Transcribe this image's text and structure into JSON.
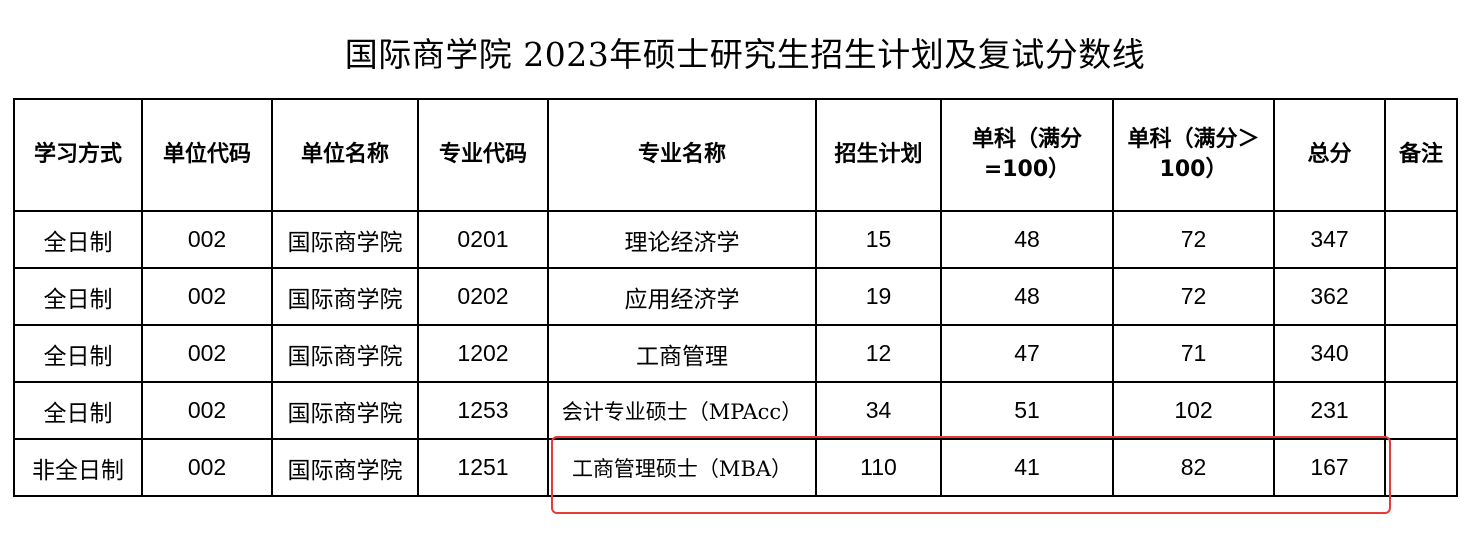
{
  "title": "国际商学院 2023年硕士研究生招生计划及复试分数线",
  "table": {
    "headers": [
      "学习方式",
      "单位代码",
      "单位名称",
      "专业代码",
      "专业名称",
      "招生计划",
      "单科（满分=100）",
      "单科（满分＞100）",
      "总分",
      "备注"
    ],
    "rows": [
      [
        "全日制",
        "002",
        "国际商学院",
        "0201",
        "理论经济学",
        "15",
        "48",
        "72",
        "347",
        ""
      ],
      [
        "全日制",
        "002",
        "国际商学院",
        "0202",
        "应用经济学",
        "19",
        "48",
        "72",
        "362",
        ""
      ],
      [
        "全日制",
        "002",
        "国际商学院",
        "1202",
        "工商管理",
        "12",
        "47",
        "71",
        "340",
        ""
      ],
      [
        "全日制",
        "002",
        "国际商学院",
        "1253",
        "会计专业硕士（MPAcc）",
        "34",
        "51",
        "102",
        "231",
        ""
      ],
      [
        "非全日制",
        "002",
        "国际商学院",
        "1251",
        "工商管理硕士（MBA）",
        "110",
        "41",
        "82",
        "167",
        ""
      ]
    ]
  },
  "colors": {
    "highlight_border": "#e8393b",
    "table_border": "#000000"
  }
}
